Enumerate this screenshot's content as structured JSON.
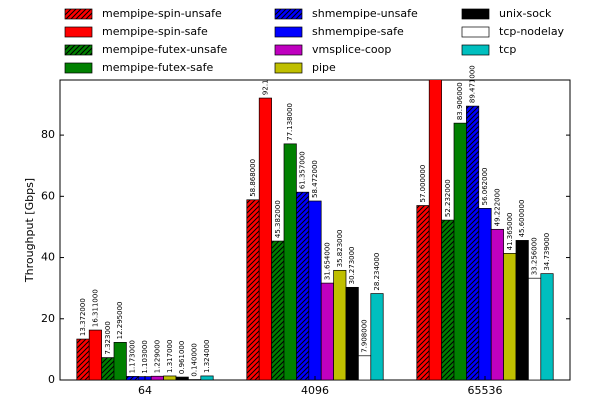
{
  "chart_data": {
    "type": "bar",
    "y_label": "Throughput [Gbps]",
    "categories": [
      "64",
      "4096",
      "65536"
    ],
    "ylim": [
      0,
      98
    ],
    "yticks": [
      0,
      20,
      40,
      60,
      80
    ],
    "series": [
      {
        "name": "mempipe-spin-unsafe",
        "color": "#ff0000",
        "hatch": true,
        "values": [
          13.372,
          58.868,
          57.0
        ],
        "value_labels": [
          "13.372000",
          "58.868000",
          "57.000000"
        ]
      },
      {
        "name": "mempipe-spin-safe",
        "color": "#ff0000",
        "hatch": false,
        "values": [
          16.311,
          92.1,
          99
        ],
        "value_labels": [
          "16.311000",
          "92.1",
          null
        ]
      },
      {
        "name": "mempipe-futex-unsafe",
        "color": "#008000",
        "hatch": true,
        "values": [
          7.323,
          45.382,
          52.232
        ],
        "value_labels": [
          "7.323000",
          "45.382000",
          "52.232000"
        ]
      },
      {
        "name": "mempipe-futex-safe",
        "color": "#008000",
        "hatch": false,
        "values": [
          12.295,
          77.138,
          83.906
        ],
        "value_labels": [
          "12.295000",
          "77.138000",
          "83.906000"
        ]
      },
      {
        "name": "shmempipe-unsafe",
        "color": "#0000ff",
        "hatch": true,
        "values": [
          1.173,
          61.357,
          89.471
        ],
        "value_labels": [
          "1.173000",
          "61.357000",
          "89.471000"
        ]
      },
      {
        "name": "shmempipe-safe",
        "color": "#0000ff",
        "hatch": false,
        "values": [
          1.103,
          58.472,
          56.062
        ],
        "value_labels": [
          "1.103000",
          "58.472000",
          "56.062000"
        ]
      },
      {
        "name": "vmsplice-coop",
        "color": "#bf00bf",
        "hatch": false,
        "values": [
          1.229,
          31.654,
          49.222
        ],
        "value_labels": [
          "1.229000",
          "31.654000",
          "49.222000"
        ]
      },
      {
        "name": "pipe",
        "color": "#bfbf00",
        "hatch": false,
        "values": [
          1.317,
          35.823,
          41.365
        ],
        "value_labels": [
          "1.317000",
          "35.823000",
          "41.365000"
        ]
      },
      {
        "name": "unix-sock",
        "color": "#000000",
        "hatch": false,
        "values": [
          0.961,
          30.273,
          45.6
        ],
        "value_labels": [
          "0.961000",
          "30.273000",
          "45.600000"
        ]
      },
      {
        "name": "tcp-nodelay",
        "color": "#ffffff",
        "hatch": false,
        "values": [
          0.14,
          7.908,
          33.256
        ],
        "value_labels": [
          "0.140000",
          "7.908000",
          "33.256000"
        ]
      },
      {
        "name": "tcp",
        "color": "#00bfbf",
        "hatch": false,
        "values": [
          1.324,
          28.234,
          34.739
        ],
        "value_labels": [
          "1.324000",
          "28.234000",
          "34.739000"
        ]
      }
    ]
  }
}
